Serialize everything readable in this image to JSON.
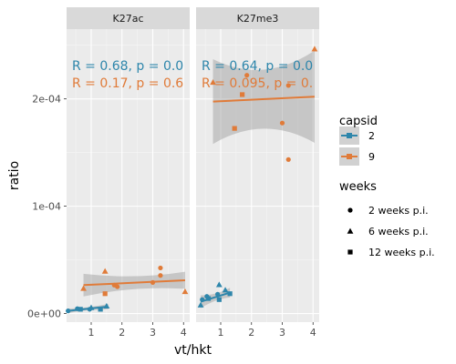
{
  "chart_data": {
    "type": "scatter",
    "xlabel": "vt/hkt",
    "ylabel": "ratio",
    "xlim": [
      0.2,
      4.2
    ],
    "ylim": [
      -8e-06,
      0.000265
    ],
    "x_ticks": [
      1,
      2,
      3,
      4
    ],
    "x_tick_labels": [
      "1",
      "2",
      "3",
      "4"
    ],
    "y_ticks": [
      0,
      0.0001,
      0.0002
    ],
    "y_tick_labels": [
      "0e+00",
      "1e-04",
      "2e-04"
    ],
    "grid": true,
    "facets": [
      {
        "label": "K27ac",
        "stats": [
          {
            "capsid": "2",
            "text": "R = 0.68, p = 0.0"
          },
          {
            "capsid": "9",
            "text": "R = 0.17, p = 0.6"
          }
        ],
        "fits": [
          {
            "capsid": "2",
            "x": [
              0.25,
              1.55
            ],
            "y": [
              2.5e-06,
              6.5e-06
            ],
            "ci_lower": [
              5e-07,
              4e-06
            ],
            "ci_upper": [
              4.5e-06,
              9e-06
            ]
          },
          {
            "capsid": "9",
            "x": [
              0.75,
              4.05
            ],
            "y": [
              2.65e-05,
              3.1e-05
            ],
            "ci_lower": [
              1.6e-05,
              2.3e-05
            ],
            "ci_upper": [
              3.7e-05,
              3.9e-05
            ]
          }
        ],
        "points": [
          {
            "capsid": "2",
            "weeks": "2 weeks p.i.",
            "x": 0.25,
            "y": 2.5e-06
          },
          {
            "capsid": "2",
            "weeks": "2 weeks p.i.",
            "x": 0.55,
            "y": 4.5e-06
          },
          {
            "capsid": "2",
            "weeks": "2 weeks p.i.",
            "x": 0.95,
            "y": 4e-06
          },
          {
            "capsid": "2",
            "weeks": "6 weeks p.i.",
            "x": 1.0,
            "y": 5.5e-06
          },
          {
            "capsid": "2",
            "weeks": "6 weeks p.i.",
            "x": 1.5,
            "y": 7e-06
          },
          {
            "capsid": "2",
            "weeks": "12 weeks p.i.",
            "x": 0.65,
            "y": 4e-06
          },
          {
            "capsid": "2",
            "weeks": "12 weeks p.i.",
            "x": 1.3,
            "y": 4e-06
          },
          {
            "capsid": "9",
            "weeks": "6 weeks p.i.",
            "x": 0.75,
            "y": 2.35e-05
          },
          {
            "capsid": "9",
            "weeks": "6 weeks p.i.",
            "x": 1.45,
            "y": 3.95e-05
          },
          {
            "capsid": "9",
            "weeks": "6 weeks p.i.",
            "x": 4.05,
            "y": 2.05e-05
          },
          {
            "capsid": "9",
            "weeks": "2 weeks p.i.",
            "x": 1.75,
            "y": 2.65e-05
          },
          {
            "capsid": "9",
            "weeks": "2 weeks p.i.",
            "x": 1.85,
            "y": 2.5e-05
          },
          {
            "capsid": "9",
            "weeks": "2 weeks p.i.",
            "x": 3.0,
            "y": 2.9e-05
          },
          {
            "capsid": "9",
            "weeks": "2 weeks p.i.",
            "x": 3.25,
            "y": 4.25e-05
          },
          {
            "capsid": "9",
            "weeks": "2 weeks p.i.",
            "x": 3.25,
            "y": 3.55e-05
          },
          {
            "capsid": "9",
            "weeks": "12 weeks p.i.",
            "x": 1.45,
            "y": 1.85e-05
          }
        ]
      },
      {
        "label": "K27me3",
        "stats": [
          {
            "capsid": "2",
            "text": "R = 0.64, p = 0.0"
          },
          {
            "capsid": "9",
            "text": "R = 0.095, p = 0."
          }
        ],
        "fits": [
          {
            "capsid": "2",
            "x": [
              0.35,
              1.3
            ],
            "y": [
              1.1e-05,
              1.95e-05
            ],
            "ci_lower": [
              5e-06,
              1.5e-05
            ],
            "ci_upper": [
              1.7e-05,
              2.4e-05
            ]
          },
          {
            "capsid": "9",
            "x": [
              0.75,
              4.05
            ],
            "y": [
              0.0001975,
              0.000202
            ],
            "ci_lower": [
              0.000158,
              0.000159
            ],
            "ci_upper": [
              0.000237,
              0.000245
            ]
          }
        ],
        "points": [
          {
            "capsid": "2",
            "weeks": "6 weeks p.i.",
            "x": 0.35,
            "y": 8e-06
          },
          {
            "capsid": "2",
            "weeks": "2 weeks p.i.",
            "x": 0.4,
            "y": 1.3e-05
          },
          {
            "capsid": "2",
            "weeks": "2 weeks p.i.",
            "x": 0.55,
            "y": 1.6e-05
          },
          {
            "capsid": "2",
            "weeks": "12 weeks p.i.",
            "x": 0.6,
            "y": 1.4e-05
          },
          {
            "capsid": "2",
            "weeks": "2 weeks p.i.",
            "x": 0.9,
            "y": 1.8e-05
          },
          {
            "capsid": "2",
            "weeks": "6 weeks p.i.",
            "x": 0.95,
            "y": 2.7e-05
          },
          {
            "capsid": "2",
            "weeks": "12 weeks p.i.",
            "x": 0.95,
            "y": 1.3e-05
          },
          {
            "capsid": "2",
            "weeks": "6 weeks p.i.",
            "x": 1.15,
            "y": 2.2e-05
          },
          {
            "capsid": "2",
            "weeks": "12 weeks p.i.",
            "x": 1.3,
            "y": 1.85e-05
          },
          {
            "capsid": "9",
            "weeks": "6 weeks p.i.",
            "x": 0.75,
            "y": 0.0002155
          },
          {
            "capsid": "9",
            "weeks": "12 weeks p.i.",
            "x": 1.45,
            "y": 0.0001725
          },
          {
            "capsid": "9",
            "weeks": "12 weeks p.i.",
            "x": 1.7,
            "y": 0.000204
          },
          {
            "capsid": "9",
            "weeks": "2 weeks p.i.",
            "x": 1.85,
            "y": 0.000222
          },
          {
            "capsid": "9",
            "weeks": "2 weeks p.i.",
            "x": 3.0,
            "y": 0.0001775
          },
          {
            "capsid": "9",
            "weeks": "2 weeks p.i.",
            "x": 3.2,
            "y": 0.0002125
          },
          {
            "capsid": "9",
            "weeks": "2 weeks p.i.",
            "x": 3.2,
            "y": 0.0001435
          },
          {
            "capsid": "9",
            "weeks": "6 weeks p.i.",
            "x": 4.05,
            "y": 0.0002465
          }
        ]
      }
    ],
    "legends": [
      {
        "title": "capsid",
        "type": "color",
        "entries": [
          {
            "label": "2",
            "color": "#2e86ab"
          },
          {
            "label": "9",
            "color": "#e07b39"
          }
        ]
      },
      {
        "title": "weeks",
        "type": "shape",
        "entries": [
          {
            "label": "2 weeks p.i.",
            "shape": "circle"
          },
          {
            "label": "6 weeks p.i.",
            "shape": "triangle"
          },
          {
            "label": "12 weeks p.i.",
            "shape": "square"
          }
        ]
      }
    ],
    "legend_position": "right",
    "colors": {
      "panel_background": "#ebebeb",
      "strip_background": "#d9d9d9",
      "grid_major": "#ffffff",
      "ci_band": "#999999",
      "capsid_2": "#2e86ab",
      "capsid_9": "#e07b39"
    }
  }
}
